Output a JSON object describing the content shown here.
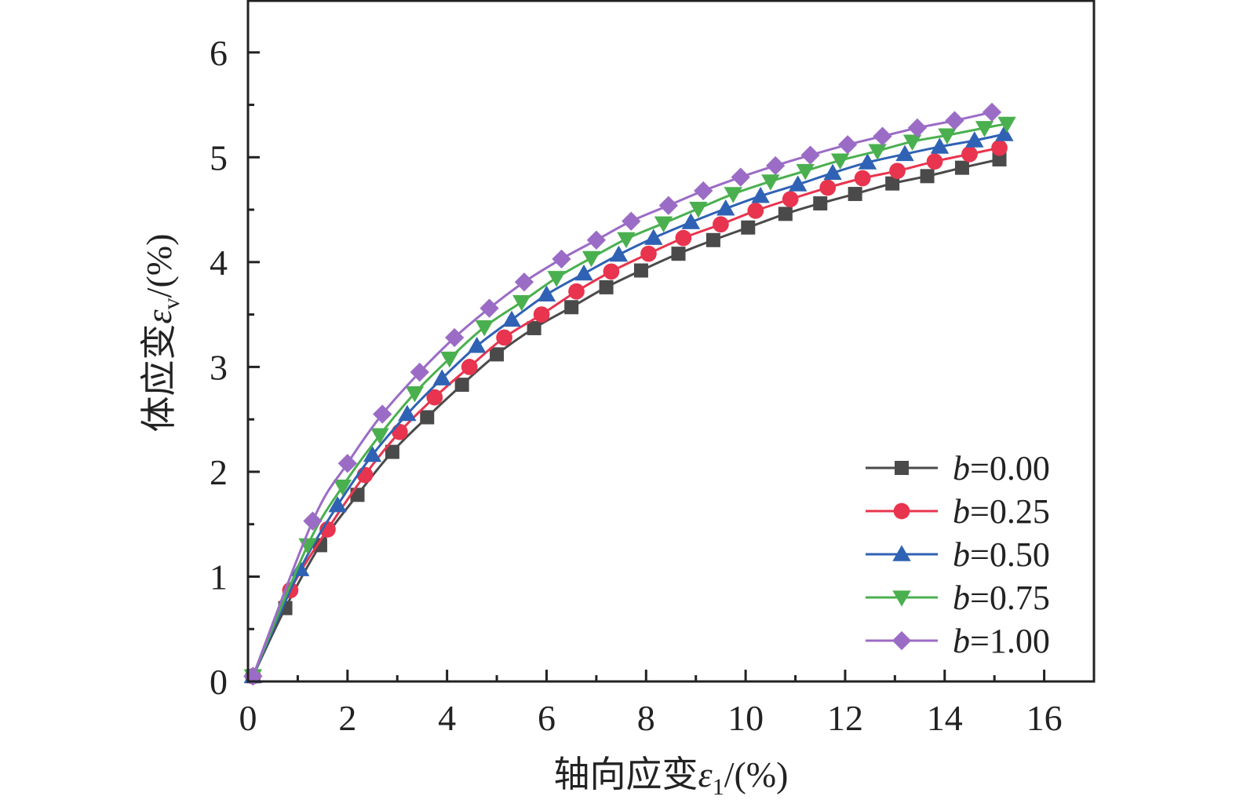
{
  "chart_data": {
    "type": "line",
    "xlabel": {
      "main": "轴向应变",
      "symbol": "ε",
      "sub": "1",
      "unit": "/(%)"
    },
    "ylabel": {
      "main": "体应变",
      "symbol": "ε",
      "sub": "v",
      "unit": "/(%)"
    },
    "xlim": [
      0,
      17
    ],
    "ylim": [
      0,
      6.5
    ],
    "x_ticks": [
      0,
      2,
      4,
      6,
      8,
      10,
      12,
      14,
      16
    ],
    "y_ticks": [
      0,
      1,
      2,
      3,
      4,
      5,
      6
    ],
    "grid": false,
    "legend_position": "bottom-right",
    "series": [
      {
        "name": "b=0.00",
        "legend_var": "b",
        "legend_value": "=0.00",
        "color": "#4a4a4a",
        "marker": "square",
        "x": [
          0.1,
          0.75,
          1.45,
          2.2,
          2.9,
          3.6,
          4.3,
          5.0,
          5.75,
          6.5,
          7.2,
          7.9,
          8.65,
          9.35,
          10.05,
          10.8,
          11.5,
          12.2,
          12.95,
          13.65,
          14.35,
          15.1
        ],
        "y": [
          0.05,
          0.7,
          1.3,
          1.78,
          2.19,
          2.52,
          2.83,
          3.12,
          3.37,
          3.57,
          3.76,
          3.92,
          4.08,
          4.21,
          4.33,
          4.46,
          4.56,
          4.65,
          4.75,
          4.82,
          4.9,
          4.98
        ]
      },
      {
        "name": "b=0.25",
        "legend_var": "b",
        "legend_value": "=0.25",
        "color": "#e8344e",
        "marker": "circle",
        "x": [
          0.1,
          0.85,
          1.6,
          2.35,
          3.05,
          3.75,
          4.45,
          5.15,
          5.9,
          6.6,
          7.3,
          8.05,
          8.75,
          9.5,
          10.2,
          10.9,
          11.65,
          12.35,
          13.05,
          13.8,
          14.5,
          15.1
        ],
        "y": [
          0.05,
          0.87,
          1.45,
          1.97,
          2.38,
          2.71,
          3.0,
          3.28,
          3.5,
          3.72,
          3.91,
          4.08,
          4.23,
          4.36,
          4.49,
          4.6,
          4.71,
          4.8,
          4.87,
          4.96,
          5.03,
          5.09
        ]
      },
      {
        "name": "b=0.50",
        "legend_var": "b",
        "legend_value": "=0.50",
        "color": "#2f62b4",
        "marker": "triangle-up",
        "x": [
          0.1,
          1.05,
          1.8,
          2.5,
          3.2,
          3.9,
          4.6,
          5.3,
          6.0,
          6.75,
          7.45,
          8.15,
          8.9,
          9.6,
          10.3,
          11.05,
          11.75,
          12.45,
          13.2,
          13.9,
          14.6,
          15.2
        ],
        "y": [
          0.05,
          1.07,
          1.68,
          2.16,
          2.55,
          2.89,
          3.2,
          3.45,
          3.69,
          3.89,
          4.07,
          4.23,
          4.38,
          4.51,
          4.63,
          4.74,
          4.85,
          4.95,
          5.03,
          5.1,
          5.16,
          5.22
        ]
      },
      {
        "name": "b=0.75",
        "legend_var": "b",
        "legend_value": "=0.75",
        "color": "#4ab04f",
        "marker": "triangle-down",
        "x": [
          0.1,
          1.2,
          1.9,
          2.65,
          3.35,
          4.05,
          4.75,
          5.5,
          6.2,
          6.9,
          7.6,
          8.35,
          9.05,
          9.75,
          10.5,
          11.2,
          11.9,
          12.65,
          13.35,
          14.05,
          14.8,
          15.25
        ],
        "y": [
          0.05,
          1.3,
          1.86,
          2.35,
          2.75,
          3.08,
          3.38,
          3.62,
          3.85,
          4.04,
          4.22,
          4.37,
          4.51,
          4.65,
          4.77,
          4.87,
          4.97,
          5.06,
          5.15,
          5.21,
          5.28,
          5.32
        ]
      },
      {
        "name": "b=1.00",
        "legend_var": "b",
        "legend_value": "=1.00",
        "color": "#9b6cc6",
        "marker": "diamond",
        "x": [
          0.1,
          1.3,
          2.0,
          2.7,
          3.45,
          4.15,
          4.85,
          5.55,
          6.3,
          7.0,
          7.7,
          8.45,
          9.15,
          9.9,
          10.6,
          11.3,
          12.05,
          12.75,
          13.45,
          14.2,
          14.95
        ],
        "y": [
          0.05,
          1.53,
          2.08,
          2.55,
          2.95,
          3.28,
          3.56,
          3.81,
          4.03,
          4.21,
          4.39,
          4.54,
          4.68,
          4.81,
          4.92,
          5.02,
          5.12,
          5.2,
          5.28,
          5.35,
          5.43
        ]
      }
    ]
  }
}
